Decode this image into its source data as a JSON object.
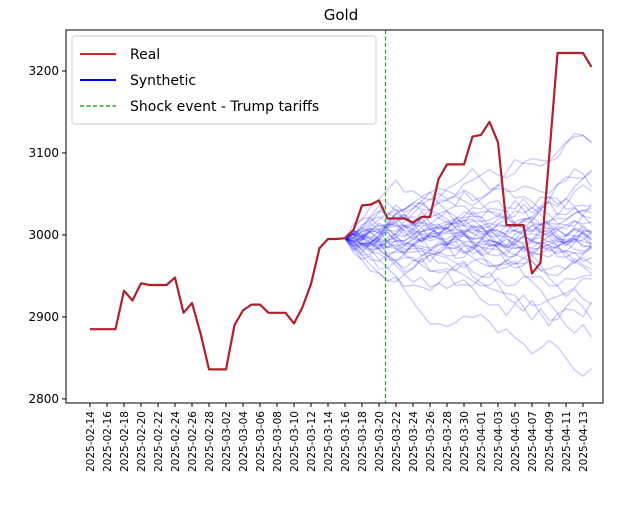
{
  "chart_data": {
    "type": "line",
    "title": "Gold",
    "xlabel": "",
    "ylabel": "",
    "ylim": [
      2795,
      3250
    ],
    "yticks": [
      2800,
      2900,
      3000,
      3100,
      3200
    ],
    "ytick_labels": [
      "2800",
      "2900",
      "3000",
      "3100",
      "3200"
    ],
    "xtick_labels": [
      "2025-02-14",
      "2025-02-16",
      "2025-02-18",
      "2025-02-20",
      "2025-02-22",
      "2025-02-24",
      "2025-02-26",
      "2025-02-28",
      "2025-03-02",
      "2025-03-04",
      "2025-03-06",
      "2025-03-08",
      "2025-03-10",
      "2025-03-12",
      "2025-03-14",
      "2025-03-16",
      "2025-03-18",
      "2025-03-20",
      "2025-03-22",
      "2025-03-24",
      "2025-03-26",
      "2025-03-28",
      "2025-03-30",
      "2025-04-01",
      "2025-04-03",
      "2025-04-05",
      "2025-04-07",
      "2025-04-09",
      "2025-04-11",
      "2025-04-13"
    ],
    "x_start": "2025-02-14",
    "grid": false,
    "legend_position": "top-left",
    "legend": [
      {
        "label": "Real",
        "color": "#d62728",
        "style": "solid"
      },
      {
        "label": "Synthetic",
        "color": "#0000ff",
        "style": "solid"
      },
      {
        "label": "Shock event - Trump tariffs",
        "color": "#2ca02c",
        "style": "dashed"
      }
    ],
    "shock_event_date": "2025-03-21",
    "real_series": {
      "name": "Real",
      "color": "#d62728",
      "x": [
        "2025-02-14",
        "2025-02-15",
        "2025-02-16",
        "2025-02-17",
        "2025-02-18",
        "2025-02-19",
        "2025-02-20",
        "2025-02-21",
        "2025-02-22",
        "2025-02-23",
        "2025-02-24",
        "2025-02-25",
        "2025-02-26",
        "2025-02-27",
        "2025-02-28",
        "2025-03-01",
        "2025-03-02",
        "2025-03-03",
        "2025-03-04",
        "2025-03-05",
        "2025-03-06",
        "2025-03-07",
        "2025-03-08",
        "2025-03-09",
        "2025-03-10",
        "2025-03-11",
        "2025-03-12",
        "2025-03-13",
        "2025-03-14",
        "2025-03-15",
        "2025-03-16",
        "2025-03-17",
        "2025-03-18",
        "2025-03-19",
        "2025-03-20",
        "2025-03-21",
        "2025-03-22",
        "2025-03-23",
        "2025-03-24",
        "2025-03-25",
        "2025-03-26",
        "2025-03-27",
        "2025-03-28",
        "2025-03-29",
        "2025-03-30",
        "2025-03-31",
        "2025-04-01",
        "2025-04-02",
        "2025-04-03",
        "2025-04-04",
        "2025-04-05",
        "2025-04-06",
        "2025-04-07",
        "2025-04-08",
        "2025-04-09",
        "2025-04-10",
        "2025-04-11",
        "2025-04-12",
        "2025-04-13",
        "2025-04-14"
      ],
      "values": [
        2885,
        2885,
        2885,
        2885,
        2932,
        2920,
        2941,
        2939,
        2939,
        2939,
        2948,
        2905,
        2917,
        2880,
        2836,
        2836,
        2836,
        2890,
        2908,
        2915,
        2915,
        2905,
        2905,
        2905,
        2892,
        2912,
        2940,
        2984,
        2995,
        2995,
        2996,
        3006,
        3036,
        3037,
        3042,
        3020,
        3020,
        3020,
        3015,
        3022,
        3022,
        3068,
        3086,
        3086,
        3086,
        3120,
        3122,
        3138,
        3113,
        3012,
        3012,
        3012,
        2953,
        2966,
        3093,
        3222,
        3222,
        3222,
        3222,
        3205
      ]
    },
    "synthetic_series_count": 40
  }
}
